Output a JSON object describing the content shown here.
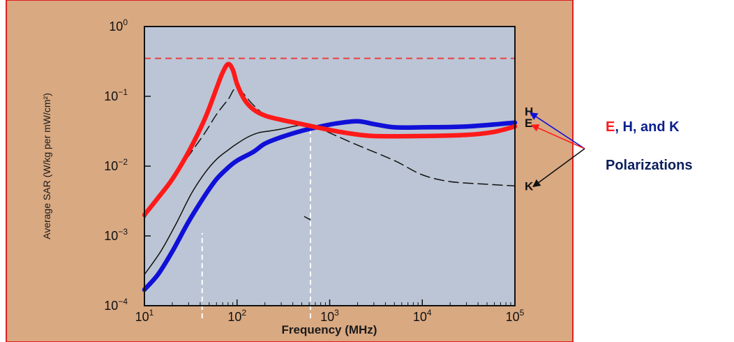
{
  "colors": {
    "panel": "#D9A982",
    "panel_border": "#E02020",
    "plot_bg": "#BCC5D5",
    "e": "#FF1A1A",
    "h": "#1010D8",
    "k": "#111111",
    "limit": "#E84040",
    "guide": "#FFFFFF",
    "legend_e": "#FF1A1A",
    "legend_h": "#0A1F8F",
    "legend_dark": "#0B1F5C"
  },
  "chart_data": {
    "type": "line",
    "title": "",
    "xlabel": "Frequency (MHz)",
    "ylabel": "Average SAR (W/kg per mW/cm²)",
    "xscale": "log",
    "yscale": "log",
    "xlim": [
      10,
      100000
    ],
    "ylim": [
      0.0001,
      1
    ],
    "x_ticks": [
      {
        "value": 10,
        "base": "10",
        "exp": "1"
      },
      {
        "value": 100,
        "base": "10",
        "exp": "2"
      },
      {
        "value": 1000,
        "base": "10",
        "exp": "3"
      },
      {
        "value": 10000,
        "base": "10",
        "exp": "4"
      },
      {
        "value": 100000,
        "base": "10",
        "exp": "5"
      }
    ],
    "y_ticks": [
      {
        "value": 1,
        "base": "10",
        "exp": "0"
      },
      {
        "value": 0.1,
        "base": "10",
        "exp": "−1"
      },
      {
        "value": 0.01,
        "base": "10",
        "exp": "−2"
      },
      {
        "value": 0.001,
        "base": "10",
        "exp": "−3"
      },
      {
        "value": 0.0001,
        "base": "10",
        "exp": "−4"
      }
    ],
    "grid": false,
    "series": [
      {
        "name": "E",
        "style": "thick-red",
        "x": [
          10,
          14,
          20,
          30,
          45,
          60,
          70,
          80,
          90,
          100,
          120,
          150,
          200,
          300,
          500,
          800,
          1500,
          3000,
          10000,
          30000,
          60000,
          100000
        ],
        "y": [
          0.002,
          0.0035,
          0.0065,
          0.016,
          0.048,
          0.13,
          0.22,
          0.29,
          0.24,
          0.15,
          0.09,
          0.065,
          0.053,
          0.046,
          0.04,
          0.035,
          0.03,
          0.027,
          0.027,
          0.028,
          0.031,
          0.037
        ]
      },
      {
        "name": "H",
        "style": "thick-blue",
        "x": [
          10,
          14,
          20,
          30,
          45,
          60,
          80,
          100,
          150,
          200,
          300,
          500,
          800,
          1200,
          2000,
          3000,
          5000,
          10000,
          30000,
          100000
        ],
        "y": [
          0.00017,
          0.00028,
          0.0006,
          0.0016,
          0.0038,
          0.0065,
          0.0095,
          0.012,
          0.016,
          0.021,
          0.026,
          0.032,
          0.037,
          0.041,
          0.044,
          0.04,
          0.036,
          0.036,
          0.037,
          0.042
        ]
      },
      {
        "name": "K",
        "style": "dashed-black",
        "x": [
          10,
          14,
          20,
          30,
          45,
          60,
          80,
          100,
          150,
          200,
          300,
          500,
          700,
          1000,
          2000,
          5000,
          10000,
          20000,
          50000,
          100000
        ],
        "y": [
          0.0018,
          0.0035,
          0.0065,
          0.014,
          0.03,
          0.055,
          0.09,
          0.13,
          0.075,
          0.055,
          0.047,
          0.042,
          0.038,
          0.03,
          0.02,
          0.012,
          0.0075,
          0.006,
          0.0055,
          0.0052
        ]
      },
      {
        "name": "",
        "style": "thin-black",
        "x": [
          10,
          15,
          22,
          32,
          45,
          60,
          80,
          100,
          130,
          170,
          230,
          300,
          400,
          500,
          600
        ],
        "y": [
          0.00028,
          0.0006,
          0.0015,
          0.004,
          0.008,
          0.0125,
          0.017,
          0.021,
          0.026,
          0.03,
          0.032,
          0.034,
          0.037,
          0.039,
          0.04
        ]
      }
    ],
    "limit_line": {
      "y": 0.35,
      "style": "dashed-red"
    },
    "guide_lines": [
      {
        "x": 42,
        "y_from": 0.0001,
        "y_to": 0.0011
      },
      {
        "x": 620,
        "y_from": 0.0001,
        "y_to": 0.04
      }
    ],
    "stray_mark": {
      "x1": 530,
      "y1": 0.0019,
      "x2": 620,
      "y2": 0.0017
    },
    "end_labels": [
      {
        "text": "H",
        "series": "H"
      },
      {
        "text": "E",
        "series": "E"
      },
      {
        "text": "K",
        "series": "K"
      }
    ],
    "legend": {
      "line1": {
        "e": "E",
        "sep": ", ",
        "h": "H",
        "rest": ", and K"
      },
      "line2": "Polarizations"
    }
  }
}
